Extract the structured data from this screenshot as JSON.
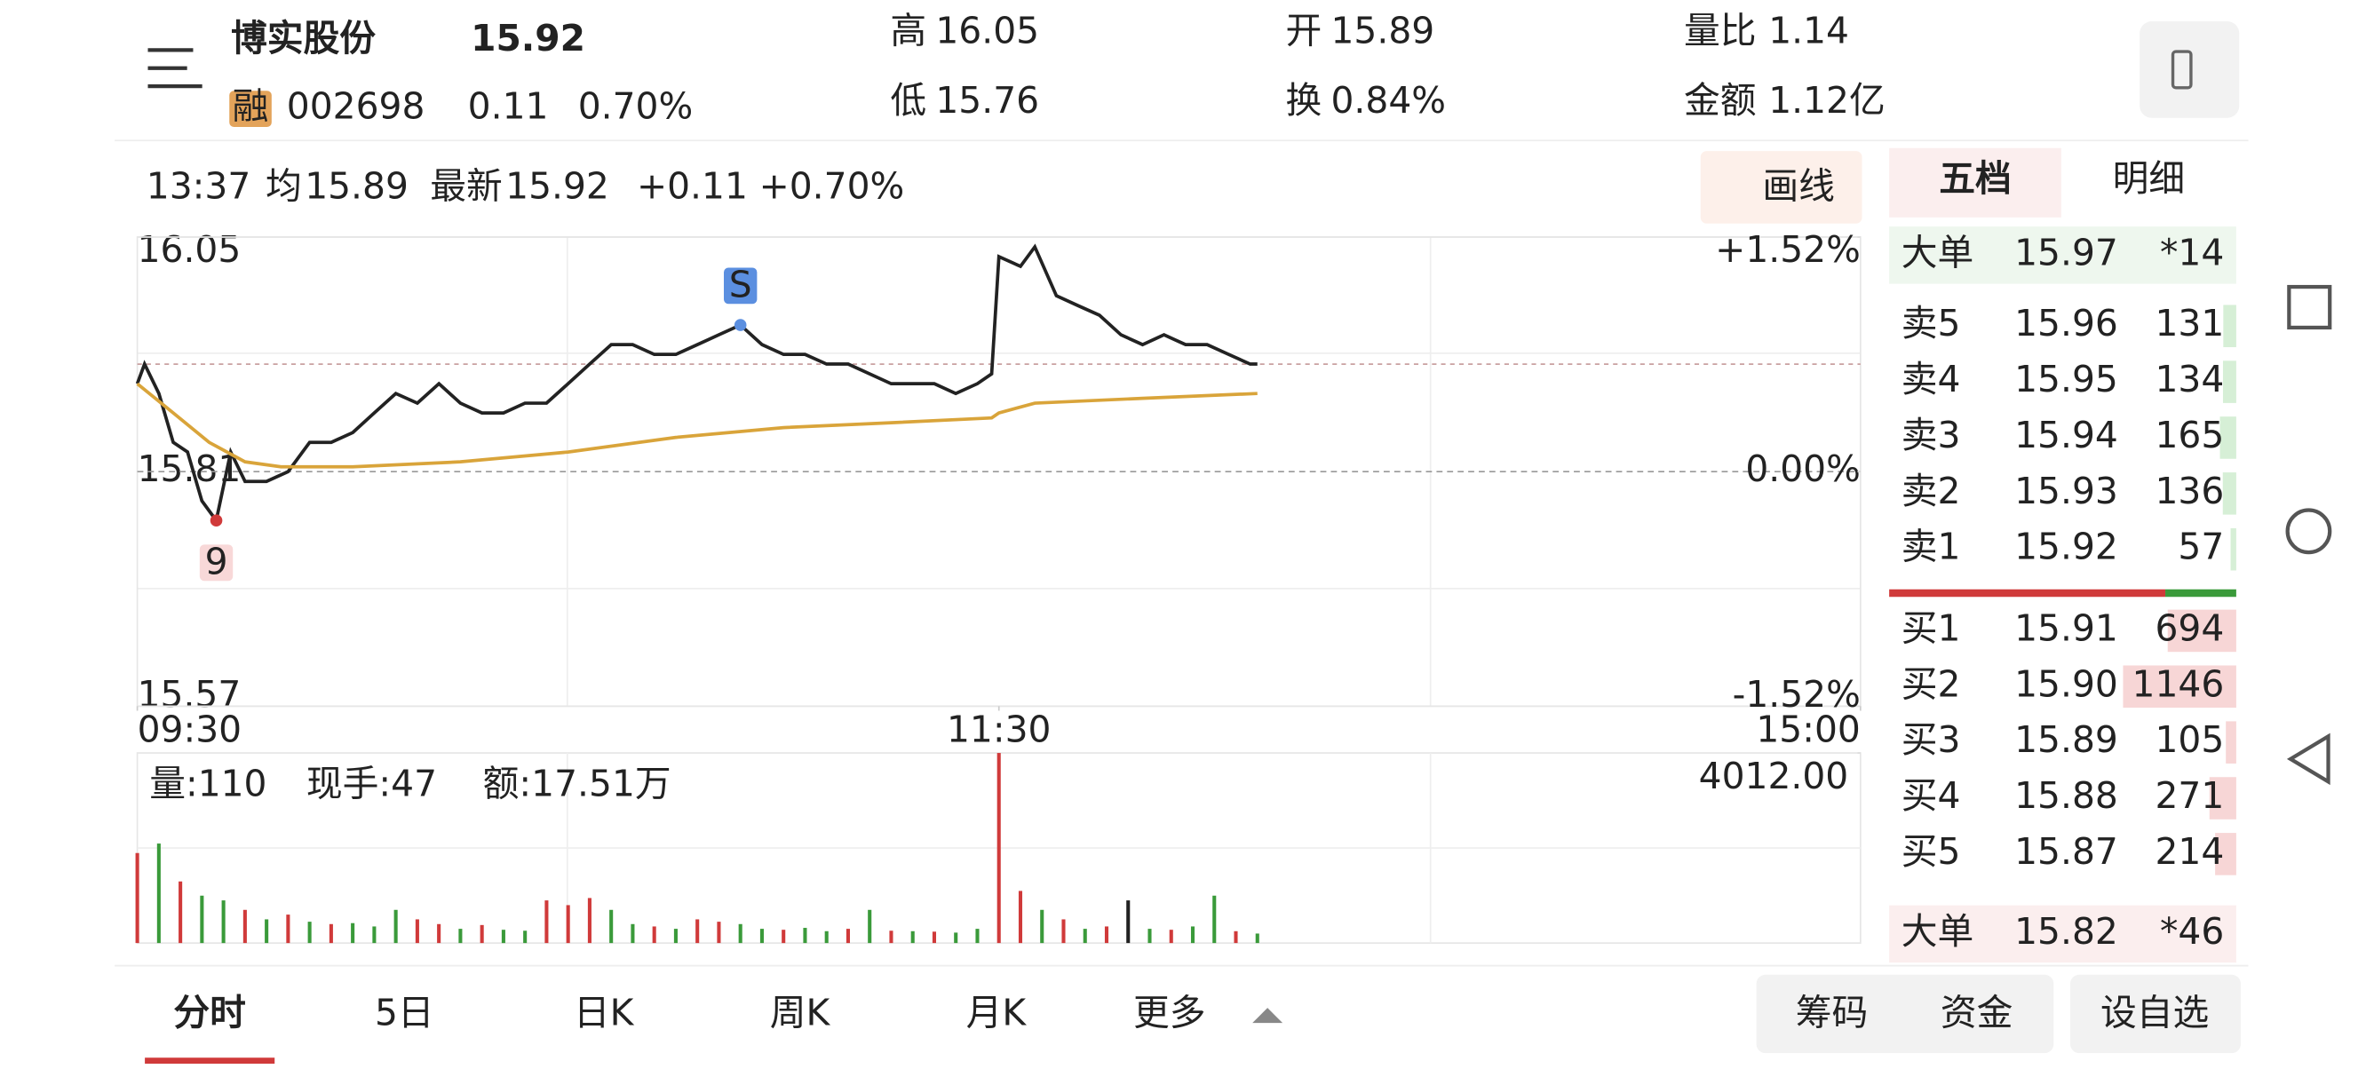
{
  "header": {
    "name": "博实股份",
    "price": "15.92",
    "margin_tag": "融",
    "code": "002698",
    "change": "0.11",
    "change_pct": "0.70%",
    "stats": [
      {
        "label": "高",
        "value": "16.05"
      },
      {
        "label": "低",
        "value": "15.76"
      },
      {
        "label": "开",
        "value": "15.89"
      },
      {
        "label": "换",
        "value": "0.84%"
      },
      {
        "label": "量比",
        "value": "1.14"
      },
      {
        "label": "金额",
        "value": "1.12亿"
      }
    ]
  },
  "info": {
    "time": "13:37",
    "avg_label": "均",
    "avg": "15.89",
    "latest_label": "最新",
    "latest": "15.92",
    "change": "+0.11",
    "change_pct": "+0.70%",
    "draw_button": "画线"
  },
  "chart_data": [
    {
      "type": "line",
      "xlim": [
        0,
        240
      ],
      "xticks": [
        {
          "value": 0,
          "label": "09:30"
        },
        {
          "value": 120,
          "label": "11:30"
        },
        {
          "value": 240,
          "label": "15:00"
        }
      ],
      "ylim": [
        15.57,
        16.05
      ],
      "yticks": [
        {
          "value": 15.57,
          "label": "15.57"
        },
        {
          "value": 15.81,
          "label": "15.81"
        },
        {
          "value": 16.05,
          "label": "16.05"
        }
      ],
      "y2lim": [
        -1.52,
        1.52
      ],
      "y2ticks": [
        {
          "value": -1.52,
          "label": "-1.52%"
        },
        {
          "value": 0,
          "label": "0.00%"
        },
        {
          "value": 1.52,
          "label": "+1.52%"
        }
      ],
      "series": [
        {
          "name": "价格",
          "color": "#222222",
          "x": [
            0,
            1,
            3,
            5,
            7,
            9,
            11,
            13,
            15,
            18,
            21,
            24,
            27,
            30,
            33,
            36,
            39,
            42,
            45,
            48,
            51,
            54,
            57,
            60,
            63,
            66,
            69,
            72,
            75,
            78,
            81,
            84,
            87,
            90,
            93,
            96,
            99,
            102,
            105,
            108,
            111,
            114,
            117,
            119,
            120,
            123,
            125,
            128,
            131,
            134,
            137,
            140,
            143,
            146,
            149,
            152,
            155,
            156
          ],
          "values": [
            15.9,
            15.92,
            15.89,
            15.84,
            15.83,
            15.78,
            15.76,
            15.83,
            15.8,
            15.8,
            15.81,
            15.84,
            15.84,
            15.85,
            15.87,
            15.89,
            15.88,
            15.9,
            15.88,
            15.87,
            15.87,
            15.88,
            15.88,
            15.9,
            15.92,
            15.94,
            15.94,
            15.93,
            15.93,
            15.94,
            15.95,
            15.96,
            15.94,
            15.93,
            15.93,
            15.92,
            15.92,
            15.91,
            15.9,
            15.9,
            15.9,
            15.89,
            15.9,
            15.91,
            16.03,
            16.02,
            16.04,
            15.99,
            15.98,
            15.97,
            15.95,
            15.94,
            15.95,
            15.94,
            15.94,
            15.93,
            15.92,
            15.92
          ]
        },
        {
          "name": "均价",
          "color": "#d9a43a",
          "x": [
            0,
            5,
            10,
            15,
            20,
            30,
            45,
            60,
            75,
            90,
            105,
            119,
            120,
            125,
            140,
            156
          ],
          "values": [
            15.9,
            15.87,
            15.84,
            15.82,
            15.815,
            15.815,
            15.82,
            15.83,
            15.845,
            15.855,
            15.86,
            15.865,
            15.87,
            15.88,
            15.885,
            15.89
          ]
        }
      ],
      "annotations": [
        {
          "text": "S",
          "x": 84,
          "y": 15.96,
          "color": "#5b8fe0"
        },
        {
          "text": "9",
          "x": 11,
          "y": 15.76,
          "color": "#d03a3a"
        }
      ]
    },
    {
      "type": "bar",
      "info": [
        "量:110",
        "现手:47",
        "额:17.51万"
      ],
      "ylim": [
        0,
        4012
      ],
      "yticks": [
        {
          "value": 4012,
          "label": "4012.00"
        }
      ],
      "x": [
        0,
        3,
        6,
        9,
        12,
        15,
        18,
        21,
        24,
        27,
        30,
        33,
        36,
        39,
        42,
        45,
        48,
        51,
        54,
        57,
        60,
        63,
        66,
        69,
        72,
        75,
        78,
        81,
        84,
        87,
        90,
        93,
        96,
        99,
        102,
        105,
        108,
        111,
        114,
        117,
        120,
        123,
        126,
        129,
        132,
        135,
        138,
        141,
        144,
        147,
        150,
        153,
        156
      ],
      "values": [
        1900,
        2100,
        1300,
        1000,
        900,
        700,
        500,
        600,
        450,
        400,
        420,
        350,
        700,
        500,
        400,
        300,
        380,
        280,
        260,
        900,
        800,
        950,
        700,
        400,
        350,
        300,
        500,
        450,
        400,
        300,
        280,
        320,
        250,
        300,
        700,
        260,
        250,
        240,
        220,
        300,
        4012,
        1100,
        700,
        500,
        300,
        350,
        900,
        300,
        280,
        350,
        1000,
        250,
        200
      ],
      "colors": [
        "#d03a3a",
        "#3a9a3a",
        "#d03a3a",
        "#3a9a3a",
        "#3a9a3a",
        "#d03a3a",
        "#3a9a3a",
        "#d03a3a",
        "#3a9a3a",
        "#d03a3a",
        "#3a9a3a",
        "#3a9a3a",
        "#3a9a3a",
        "#d03a3a",
        "#d03a3a",
        "#3a9a3a",
        "#d03a3a",
        "#3a9a3a",
        "#3a9a3a",
        "#d03a3a",
        "#d03a3a",
        "#d03a3a",
        "#3a9a3a",
        "#3a9a3a",
        "#d03a3a",
        "#3a9a3a",
        "#d03a3a",
        "#d03a3a",
        "#3a9a3a",
        "#3a9a3a",
        "#d03a3a",
        "#3a9a3a",
        "#3a9a3a",
        "#d03a3a",
        "#3a9a3a",
        "#d03a3a",
        "#3a9a3a",
        "#d03a3a",
        "#3a9a3a",
        "#3a9a3a",
        "#d03a3a",
        "#d03a3a",
        "#3a9a3a",
        "#d03a3a",
        "#3a9a3a",
        "#d03a3a",
        "#222222",
        "#3a9a3a",
        "#d03a3a",
        "#3a9a3a",
        "#3a9a3a",
        "#d03a3a",
        "#3a9a3a"
      ]
    }
  ],
  "order_book": {
    "tabs": [
      "五档",
      "明细"
    ],
    "big_sell": {
      "label": "大单",
      "price": "15.97",
      "qty": "*14"
    },
    "asks": [
      {
        "label": "卖5",
        "price": "15.96",
        "qty": 131
      },
      {
        "label": "卖4",
        "price": "15.95",
        "qty": 134
      },
      {
        "label": "卖3",
        "price": "15.94",
        "qty": 165
      },
      {
        "label": "卖2",
        "price": "15.93",
        "qty": 136
      },
      {
        "label": "卖1",
        "price": "15.92",
        "qty": 57
      }
    ],
    "bids": [
      {
        "label": "买1",
        "price": "15.91",
        "qty": 694
      },
      {
        "label": "买2",
        "price": "15.90",
        "qty": 1146
      },
      {
        "label": "买3",
        "price": "15.89",
        "qty": 105
      },
      {
        "label": "买4",
        "price": "15.88",
        "qty": 271
      },
      {
        "label": "买5",
        "price": "15.87",
        "qty": 214
      }
    ],
    "big_buy": {
      "label": "大单",
      "price": "15.82",
      "qty": "*46"
    }
  },
  "bottom_tabs": [
    "分时",
    "5日",
    "日K",
    "周K",
    "月K",
    "更多"
  ],
  "buttons": [
    "筹码",
    "资金",
    "设自选"
  ]
}
